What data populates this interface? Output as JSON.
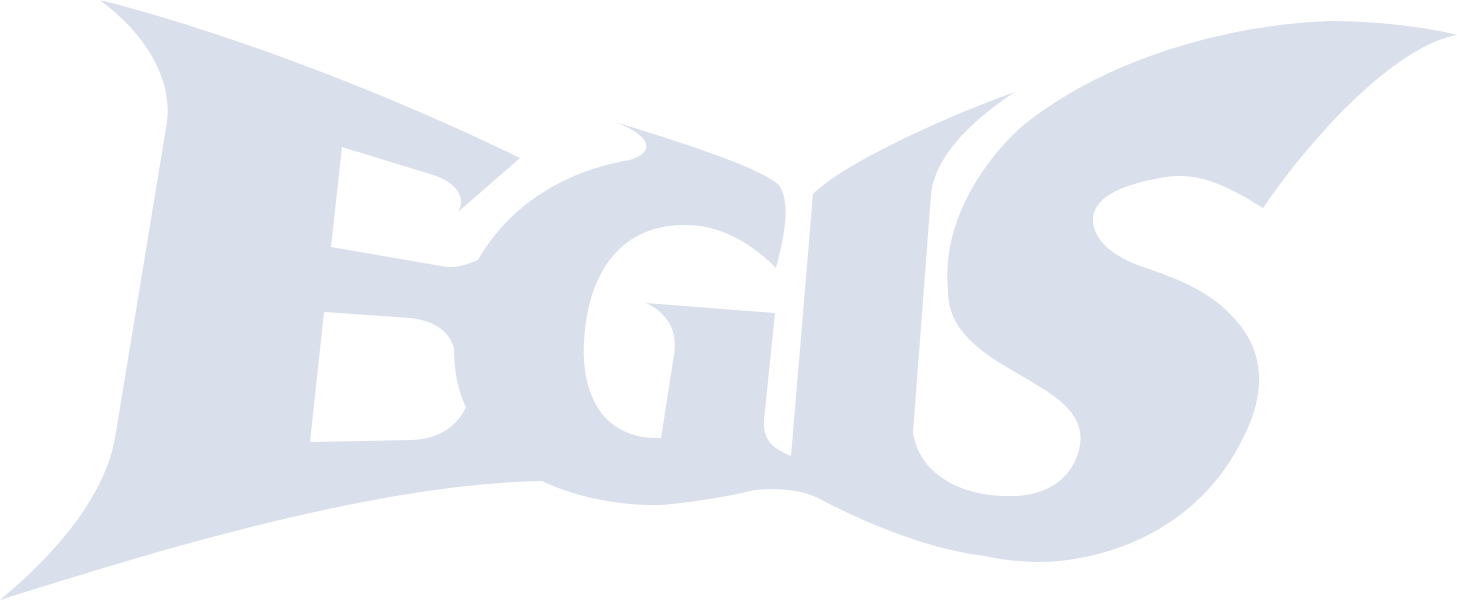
{
  "logo": {
    "wordmark": "EGIS",
    "fill_color": "#dadfec",
    "background_color": "#ffffff"
  }
}
